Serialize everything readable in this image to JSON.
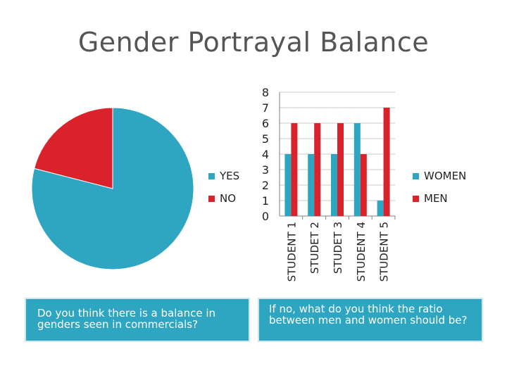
{
  "title": "Gender Portrayal Balance",
  "colors": {
    "blue": "#2ea6c1",
    "red": "#d9222b",
    "text": "#555555"
  },
  "chart_data": [
    {
      "type": "pie",
      "categories": [
        "YES",
        "NO"
      ],
      "values": [
        79,
        21
      ],
      "legend": "right"
    },
    {
      "type": "bar",
      "categories": [
        "STUDENT 1",
        "STUDET 2",
        "STUDET 3",
        "STUDENT 4",
        "STUDENT 5"
      ],
      "series": [
        {
          "name": "WOMEN",
          "values": [
            4,
            4,
            4,
            6,
            1
          ]
        },
        {
          "name": "MEN",
          "values": [
            6,
            6,
            6,
            4,
            7
          ]
        }
      ],
      "ylim": [
        0,
        8
      ],
      "yticks": [
        "0",
        "1",
        "2",
        "3",
        "4",
        "5",
        "6",
        "7",
        "8"
      ],
      "grid": true,
      "legend": "right"
    }
  ],
  "pie_legend": [
    {
      "label": "YES",
      "color": "#2ea6c1"
    },
    {
      "label": "NO",
      "color": "#d9222b"
    }
  ],
  "bar_legend": [
    {
      "label": "WOMEN",
      "color": "#2ea6c1"
    },
    {
      "label": "MEN",
      "color": "#d9222b"
    }
  ],
  "left_box": {
    "text": "Do you think there is a balance in genders seen in commercials?"
  },
  "right_box": {
    "text": "If no, what do you think the ratio between men and women should be?"
  }
}
